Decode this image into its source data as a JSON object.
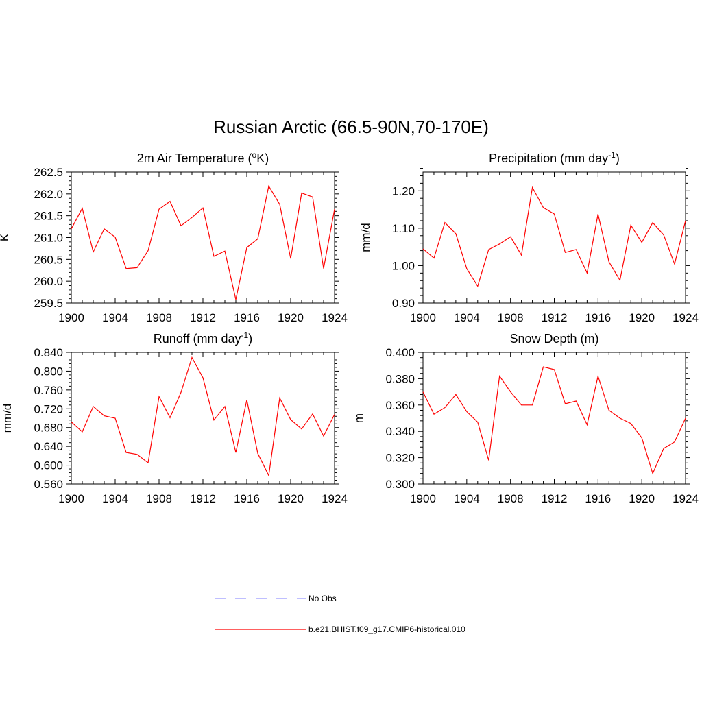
{
  "figure_title": "Russian Arctic (66.5-90N,70-170E)",
  "colors": {
    "model_line": "#ff0000",
    "obs_line": "#9999ff",
    "axes": "#000000"
  },
  "legend": [
    {
      "label": "No Obs",
      "style": "dashed",
      "color": "#9999ff"
    },
    {
      "label": "b.e21.BHIST.f09_g17.CMIP6-historical.010",
      "style": "solid",
      "color": "#ff0000"
    }
  ],
  "chart_data": [
    {
      "type": "line",
      "title_main": "2m Air Temperature (",
      "title_sup": "o",
      "title_tail": "K)",
      "ylabel": "K",
      "xlabel": "",
      "xlim": [
        1900,
        1924
      ],
      "ylim": [
        259.5,
        262.5
      ],
      "xticks": [
        "1900",
        "1904",
        "1908",
        "1912",
        "1916",
        "1920",
        "1924"
      ],
      "yticks": [
        "259.5",
        "260.0",
        "260.5",
        "261.0",
        "261.5",
        "262.0",
        "262.5"
      ],
      "x": [
        1900,
        1901,
        1902,
        1903,
        1904,
        1905,
        1906,
        1907,
        1908,
        1909,
        1910,
        1911,
        1912,
        1913,
        1914,
        1915,
        1916,
        1917,
        1918,
        1919,
        1920,
        1921,
        1922,
        1923,
        1924
      ],
      "series": [
        {
          "values": [
            261.2,
            261.67,
            260.67,
            261.2,
            261.01,
            260.29,
            260.31,
            260.7,
            261.65,
            261.83,
            261.27,
            261.46,
            261.68,
            260.57,
            260.69,
            259.58,
            260.77,
            260.97,
            262.18,
            261.76,
            260.52,
            262.02,
            261.93,
            260.29,
            261.65
          ]
        }
      ]
    },
    {
      "type": "line",
      "title_main": "Precipitation (mm day",
      "title_sup": "-1",
      "title_tail": ")",
      "ylabel": "mm/d",
      "xlabel": "",
      "xlim": [
        1900,
        1924
      ],
      "ylim": [
        0.9,
        1.25
      ],
      "xticks": [
        "1900",
        "1904",
        "1908",
        "1912",
        "1916",
        "1920",
        "1924"
      ],
      "yticks": [
        "0.90",
        "1.00",
        "1.10",
        "1.20"
      ],
      "x": [
        1900,
        1901,
        1902,
        1903,
        1904,
        1905,
        1906,
        1907,
        1908,
        1909,
        1910,
        1911,
        1912,
        1913,
        1914,
        1915,
        1916,
        1917,
        1918,
        1919,
        1920,
        1921,
        1922,
        1923,
        1924
      ],
      "series": [
        {
          "values": [
            1.045,
            1.02,
            1.115,
            1.085,
            0.992,
            0.945,
            1.043,
            1.058,
            1.077,
            1.028,
            1.209,
            1.155,
            1.138,
            1.035,
            1.043,
            0.98,
            1.138,
            1.01,
            0.961,
            1.108,
            1.062,
            1.115,
            1.082,
            1.004,
            1.12
          ]
        }
      ]
    },
    {
      "type": "line",
      "title_main": "Runoff (mm day",
      "title_sup": "-1",
      "title_tail": ")",
      "ylabel": "mm/d",
      "xlabel": "",
      "xlim": [
        1900,
        1924
      ],
      "ylim": [
        0.56,
        0.84
      ],
      "xticks": [
        "1900",
        "1904",
        "1908",
        "1912",
        "1916",
        "1920",
        "1924"
      ],
      "yticks": [
        "0.560",
        "0.600",
        "0.640",
        "0.680",
        "0.720",
        "0.760",
        "0.800",
        "0.840"
      ],
      "x": [
        1900,
        1901,
        1902,
        1903,
        1904,
        1905,
        1906,
        1907,
        1908,
        1909,
        1910,
        1911,
        1912,
        1913,
        1914,
        1915,
        1916,
        1917,
        1918,
        1919,
        1920,
        1921,
        1922,
        1923,
        1924
      ],
      "series": [
        {
          "values": [
            0.692,
            0.671,
            0.725,
            0.705,
            0.7,
            0.627,
            0.623,
            0.605,
            0.746,
            0.701,
            0.755,
            0.829,
            0.786,
            0.696,
            0.725,
            0.627,
            0.739,
            0.625,
            0.578,
            0.743,
            0.697,
            0.677,
            0.709,
            0.662,
            0.708
          ]
        }
      ]
    },
    {
      "type": "line",
      "title_main": "Snow Depth (m)",
      "title_sup": "",
      "title_tail": "",
      "ylabel": "m",
      "xlabel": "",
      "xlim": [
        1900,
        1924
      ],
      "ylim": [
        0.3,
        0.4
      ],
      "xticks": [
        "1900",
        "1904",
        "1908",
        "1912",
        "1916",
        "1920",
        "1924"
      ],
      "yticks": [
        "0.300",
        "0.320",
        "0.340",
        "0.360",
        "0.380",
        "0.400"
      ],
      "x": [
        1900,
        1901,
        1902,
        1903,
        1904,
        1905,
        1906,
        1907,
        1908,
        1909,
        1910,
        1911,
        1912,
        1913,
        1914,
        1915,
        1916,
        1917,
        1918,
        1919,
        1920,
        1921,
        1922,
        1923,
        1924
      ],
      "series": [
        {
          "values": [
            0.37,
            0.353,
            0.358,
            0.368,
            0.355,
            0.347,
            0.318,
            0.382,
            0.37,
            0.36,
            0.36,
            0.389,
            0.387,
            0.361,
            0.363,
            0.345,
            0.382,
            0.356,
            0.35,
            0.346,
            0.335,
            0.308,
            0.327,
            0.332,
            0.35
          ]
        }
      ]
    }
  ]
}
